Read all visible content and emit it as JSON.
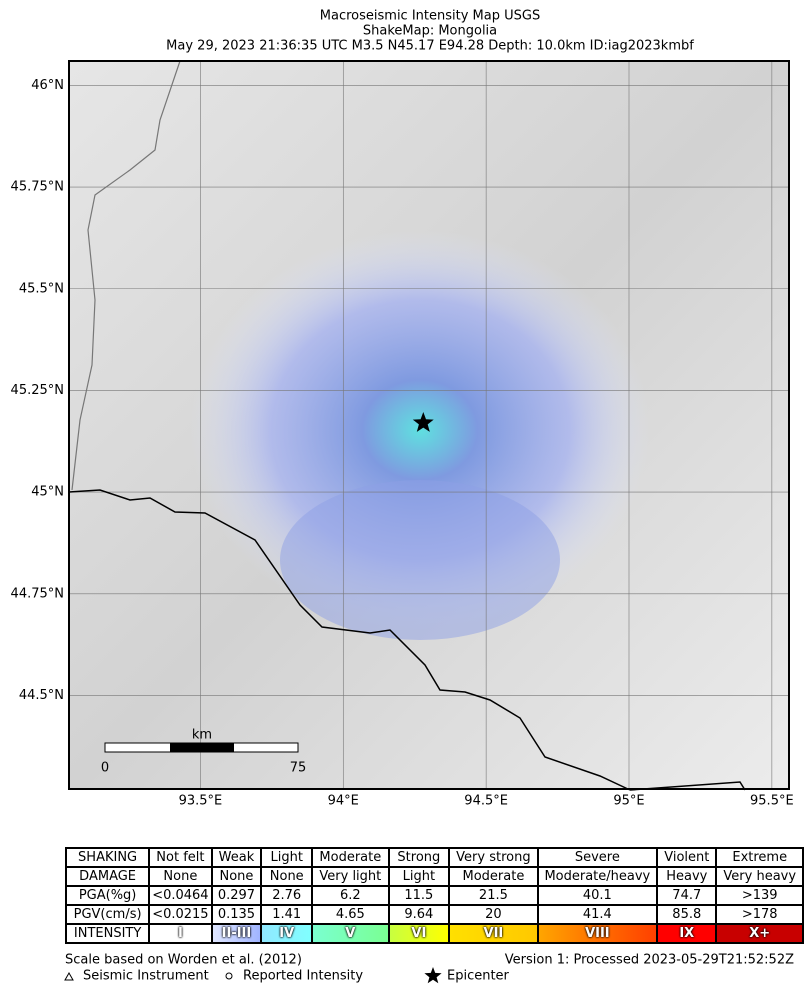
{
  "header": {
    "title": "Macroseismic Intensity Map USGS",
    "subtitle": "ShakeMap:  Mongolia",
    "details": "May 29, 2023 21:36:35 UTC M3.5 N45.17 E94.28 Depth: 10.0km ID:iag2023kmbf"
  },
  "map": {
    "latlim": [
      44.27,
      46.06
    ],
    "lonlim": [
      93.04,
      95.56
    ],
    "lat_ticks": [
      {
        "value": 46,
        "label": "46°N"
      },
      {
        "value": 45.75,
        "label": "45.75°N"
      },
      {
        "value": 45.5,
        "label": "45.5°N"
      },
      {
        "value": 45.25,
        "label": "45.25°N"
      },
      {
        "value": 45,
        "label": "45°N"
      },
      {
        "value": 44.75,
        "label": "44.75°N"
      },
      {
        "value": 44.5,
        "label": "44.5°N"
      }
    ],
    "lon_ticks": [
      {
        "value": 93.5,
        "label": "93.5°E"
      },
      {
        "value": 94,
        "label": "94°E"
      },
      {
        "value": 94.5,
        "label": "94.5°E"
      },
      {
        "value": 95,
        "label": "95°E"
      },
      {
        "value": 95.5,
        "label": "95.5°E"
      }
    ],
    "epicenter": {
      "lat": 45.17,
      "lon": 94.28
    },
    "scale_bar": {
      "unit": "km",
      "start": 0,
      "end": 75
    }
  },
  "legend": {
    "rows": [
      [
        "SHAKING",
        "Not felt",
        "Weak",
        "Light",
        "Moderate",
        "Strong",
        "Very strong",
        "Severe",
        "Violent",
        "Extreme"
      ],
      [
        "DAMAGE",
        "None",
        "None",
        "None",
        "Very light",
        "Light",
        "Moderate",
        "Moderate/heavy",
        "Heavy",
        "Very heavy"
      ],
      [
        "PGA(%g)",
        "<0.0464",
        0.297,
        2.76,
        6.2,
        11.5,
        21.5,
        40.1,
        74.7,
        ">139"
      ],
      [
        "PGV(cm/s)",
        "<0.0215",
        0.135,
        1.41,
        4.65,
        9.64,
        20,
        41.4,
        85.8,
        ">178"
      ],
      [
        "INTENSITY",
        "I",
        "II-III",
        "IV",
        "V",
        "VI",
        "VII",
        "VIII",
        "IX",
        "X+"
      ]
    ]
  },
  "footer": {
    "scale_note": "Scale based on Worden et al. (2012)",
    "version": "Version 1: Processed 2023-05-29T21:52:52Z",
    "instrument": "Seismic Instrument",
    "reported": "Reported Intensity",
    "epicenter": "Epicenter"
  }
}
